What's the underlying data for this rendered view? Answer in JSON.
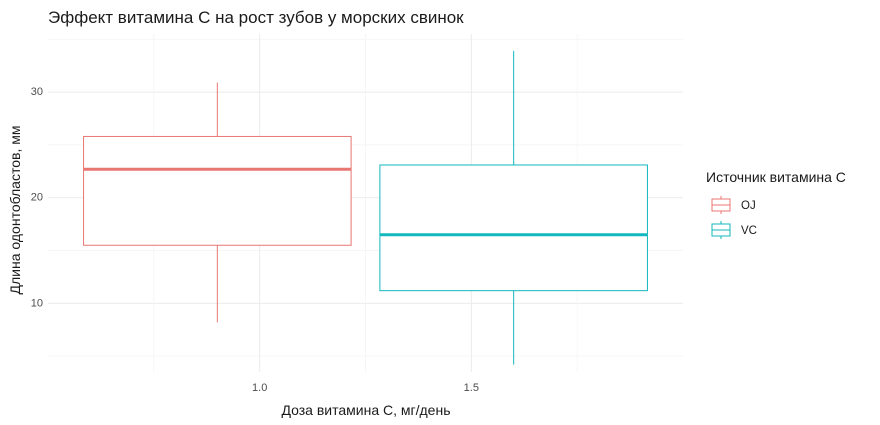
{
  "chart_data": {
    "type": "boxplot",
    "title": "Эффект витамина С на рост зубов у морских свинок",
    "xlabel": "Доза витамина С, мг/день",
    "ylabel": "Длина одонтобластов, мм",
    "x_ticks": [
      "1.0",
      "1.5"
    ],
    "y_ticks": [
      "10",
      "20",
      "30"
    ],
    "xlim": [
      0.5,
      2.0
    ],
    "ylim": [
      3.5,
      35.5
    ],
    "grid": true,
    "legend": {
      "title": "Источник витамина С",
      "placement": "right",
      "entries": [
        "OJ",
        "VC"
      ]
    },
    "series": [
      {
        "name": "OJ",
        "color": "#e87772",
        "x_center": 0.9,
        "x_min": 0.584,
        "x_max": 1.216,
        "whisker_low": 8.2,
        "q1": 15.5,
        "median": 22.7,
        "q3": 25.8,
        "whisker_high": 30.9
      },
      {
        "name": "VC",
        "color": "#13b7be",
        "x_center": 1.6,
        "x_min": 1.284,
        "x_max": 1.916,
        "whisker_low": 4.2,
        "q1": 11.2,
        "median": 16.5,
        "q3": 23.1,
        "whisker_high": 33.9
      }
    ]
  }
}
